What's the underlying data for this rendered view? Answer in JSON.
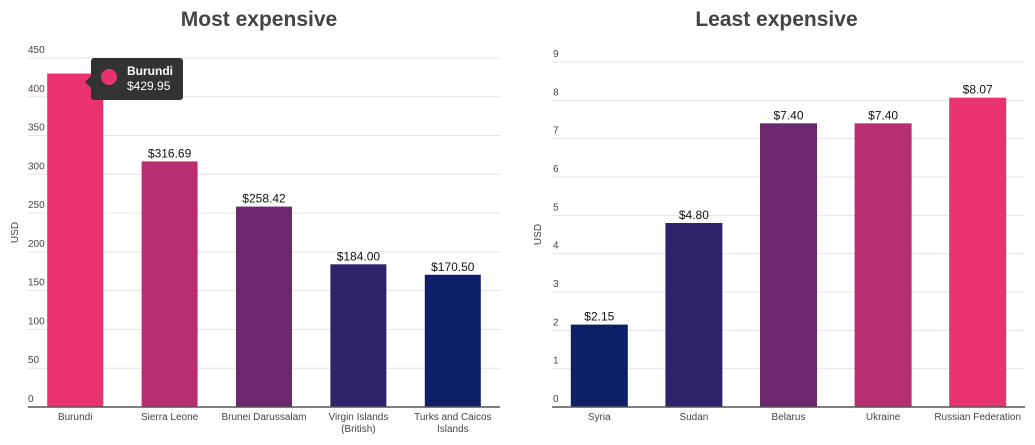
{
  "chart_data": [
    {
      "type": "bar",
      "title": "Most expensive",
      "xlabel": "",
      "ylabel": "USD",
      "ylim": [
        0,
        450
      ],
      "yticks": [
        0,
        50,
        100,
        150,
        200,
        250,
        300,
        350,
        400,
        450
      ],
      "grid": true,
      "legend": "none",
      "categories": [
        "Burundi",
        "Sierra Leone",
        "Brunei Darussalam",
        "Virgin Islands (British)",
        "Turks and Caicos Islands"
      ],
      "category_lines": [
        [
          "Burundi"
        ],
        [
          "Sierra Leone"
        ],
        [
          "Brunei Darussalam"
        ],
        [
          "Virgin Islands",
          "(British)"
        ],
        [
          "Turks and Caicos",
          "Islands"
        ]
      ],
      "values": [
        429.95,
        316.69,
        258.42,
        184.0,
        170.5
      ],
      "data_labels": [
        "$429.95",
        "$316.69",
        "$258.42",
        "$184.00",
        "$170.50"
      ],
      "show_data_label": [
        false,
        true,
        true,
        true,
        true
      ],
      "colors": [
        "#e8336f",
        "#b72f70",
        "#6d276d",
        "#2f236b",
        "#0d1f68"
      ],
      "tooltip": {
        "category": "Burundi",
        "value_label": "$429.95",
        "color": "#e8336f"
      }
    },
    {
      "type": "bar",
      "title": "Least expensive",
      "xlabel": "",
      "ylabel": "USD",
      "ylim": [
        0,
        9
      ],
      "yticks": [
        0,
        1,
        2,
        3,
        4,
        5,
        6,
        7,
        8,
        9
      ],
      "grid": true,
      "legend": "none",
      "categories": [
        "Syria",
        "Sudan",
        "Belarus",
        "Ukraine",
        "Russian Federation"
      ],
      "category_lines": [
        [
          "Syria"
        ],
        [
          "Sudan"
        ],
        [
          "Belarus"
        ],
        [
          "Ukraine"
        ],
        [
          "Russian Federation"
        ]
      ],
      "values": [
        2.15,
        4.8,
        7.4,
        7.4,
        8.07
      ],
      "data_labels": [
        "$2.15",
        "$4.80",
        "$7.40",
        "$7.40",
        "$8.07"
      ],
      "show_data_label": [
        true,
        true,
        true,
        true,
        true
      ],
      "colors": [
        "#0d1f68",
        "#2f236b",
        "#6d276d",
        "#b72f70",
        "#e8336f"
      ]
    }
  ]
}
